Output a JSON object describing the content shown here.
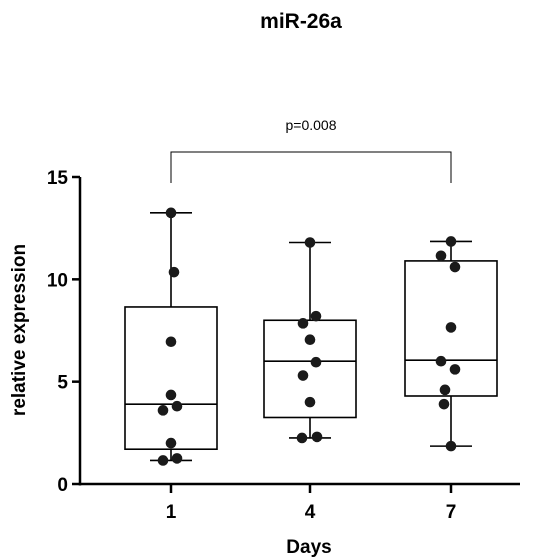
{
  "chart_data": {
    "type": "box",
    "title": "miR-26a",
    "xlabel": "Days",
    "ylabel": "relative expression",
    "categories": [
      "1",
      "4",
      "7"
    ],
    "ylim": [
      0,
      15
    ],
    "yticks": [
      "0",
      "5",
      "10",
      "15"
    ],
    "boxes": [
      {
        "category": "1",
        "min": 1.15,
        "q1": 1.7,
        "median": 3.9,
        "q3": 8.65,
        "max": 13.25
      },
      {
        "category": "4",
        "min": 2.25,
        "q1": 3.25,
        "median": 6.0,
        "q3": 8.0,
        "max": 11.8
      },
      {
        "category": "7",
        "min": 1.85,
        "q1": 4.3,
        "median": 6.05,
        "q3": 10.9,
        "max": 11.85
      }
    ],
    "points": [
      [
        13.25,
        10.35,
        6.95,
        4.35,
        3.8,
        3.6,
        2.0,
        1.25,
        1.15
      ],
      [
        11.8,
        8.2,
        7.85,
        7.05,
        5.95,
        5.3,
        4.0,
        2.3,
        2.25
      ],
      [
        11.85,
        11.15,
        10.6,
        7.65,
        6.0,
        5.6,
        4.6,
        3.9,
        1.85
      ]
    ],
    "annotations": [
      {
        "text": "p=0.008",
        "from": "1",
        "to": "7"
      }
    ]
  }
}
